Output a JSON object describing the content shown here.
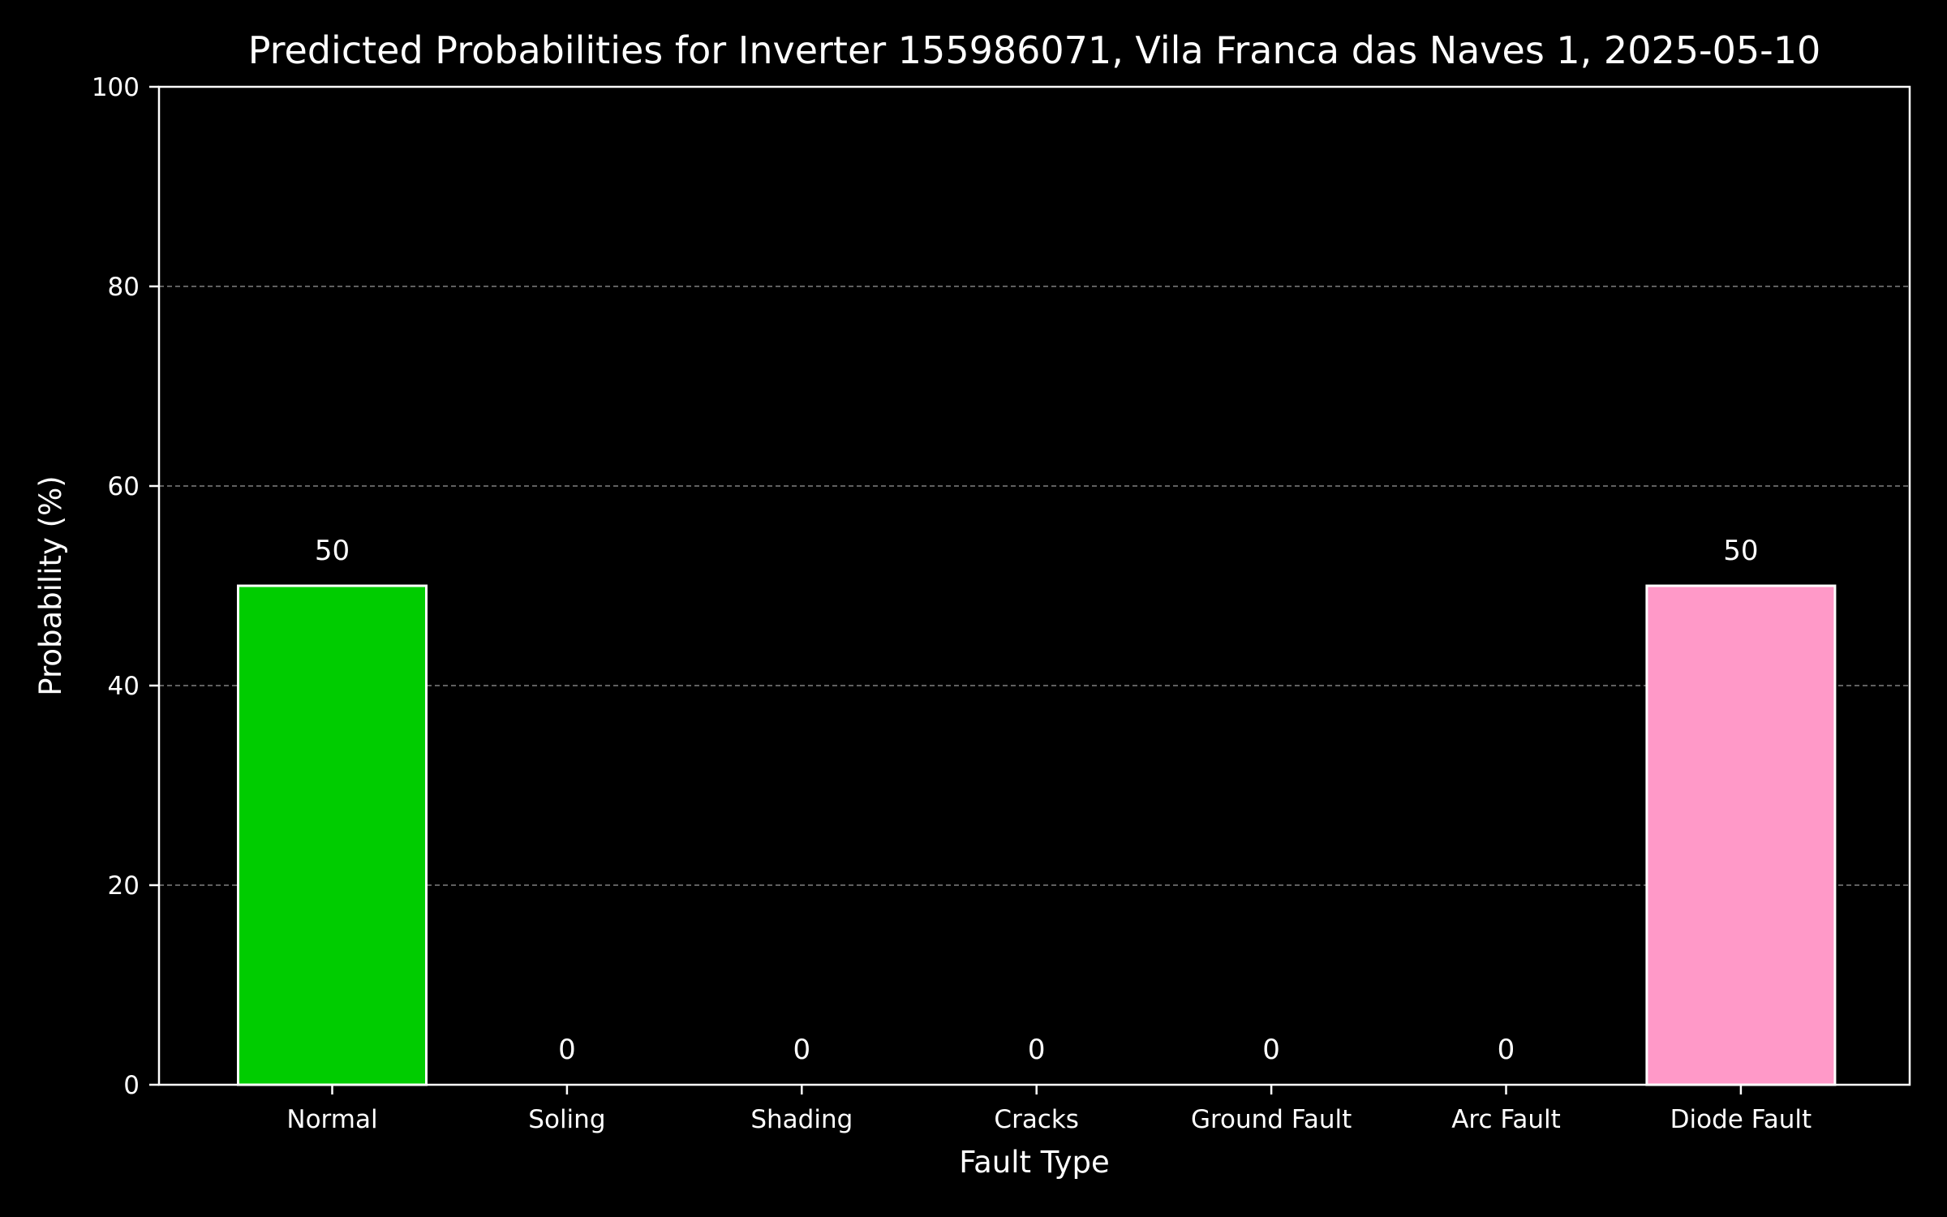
{
  "chart_data": {
    "type": "bar",
    "title": "Predicted Probabilities for Inverter 155986071, Vila Franca das Naves 1, 2025-05-10",
    "xlabel": "Fault Type",
    "ylabel": "Probability (%)",
    "categories": [
      "Normal",
      "Soling",
      "Shading",
      "Cracks",
      "Ground Fault",
      "Arc Fault",
      "Diode Fault"
    ],
    "values": [
      50,
      0,
      0,
      0,
      0,
      0,
      50
    ],
    "data_labels": [
      "50",
      "0",
      "0",
      "0",
      "0",
      "0",
      "50"
    ],
    "bar_colors": [
      "#00cc00",
      "#000000",
      "#000000",
      "#000000",
      "#000000",
      "#000000",
      "#ff99c8"
    ],
    "ylim": [
      0,
      100
    ],
    "yticks": [
      0,
      20,
      40,
      60,
      80,
      100
    ],
    "grid": "horizontal dashed",
    "background": "#000000",
    "foreground": "#ffffff"
  }
}
